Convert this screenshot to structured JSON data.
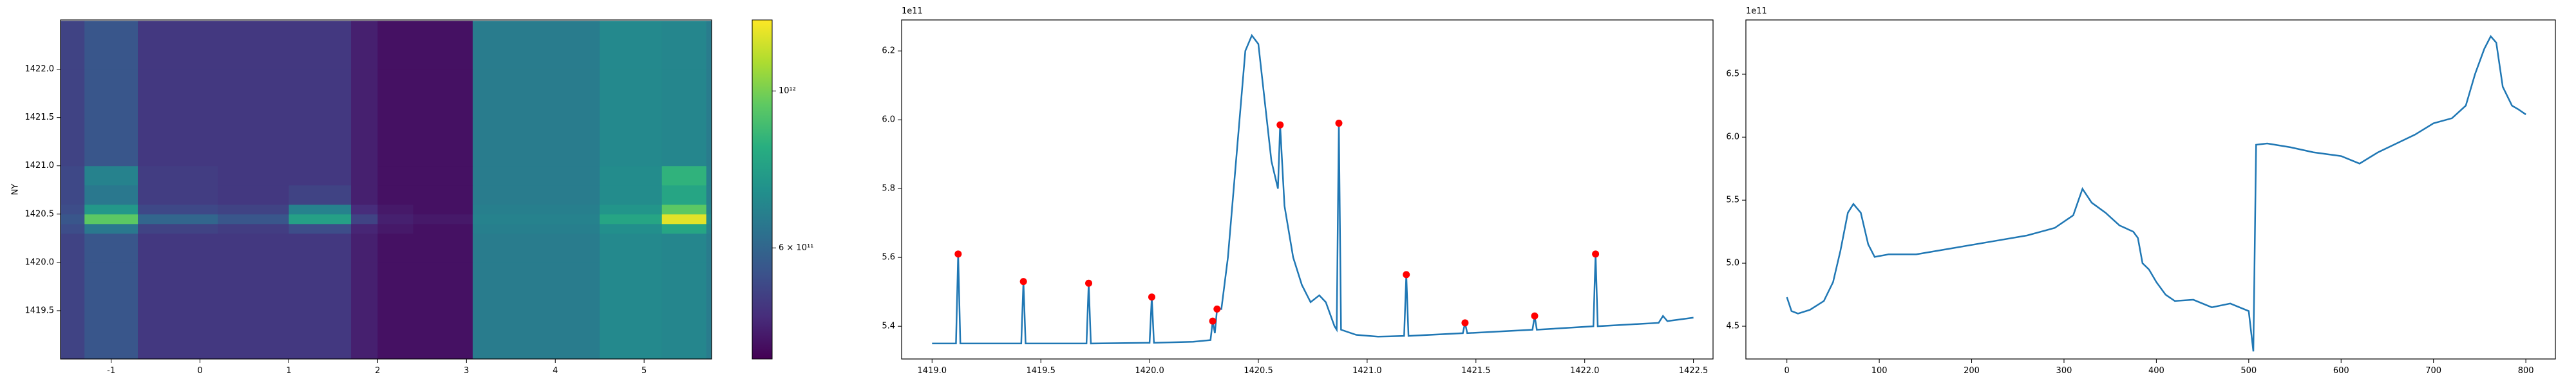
{
  "chart_data": [
    {
      "type": "heatmap",
      "ylabel": "NY",
      "colormap": "viridis",
      "xlim": [
        -1.57,
        5.76
      ],
      "ylim": [
        1419.0,
        1422.51
      ],
      "xticks": [
        -1,
        0,
        1,
        2,
        3,
        4,
        5
      ],
      "yticks": [
        1419.5,
        {
          "value": 1420,
          "label": "1420.0"
        },
        1420.5,
        {
          "value": 1421,
          "label": "1421.0"
        },
        1421.5,
        {
          "value": 1422,
          "label": "1422.0"
        }
      ],
      "x_edges": [
        -1.57,
        -1.3,
        -0.7,
        0.2,
        1.0,
        1.7,
        2.0,
        2.4,
        3.07,
        4.5,
        5.2,
        5.7,
        5.76
      ],
      "y_edges": [
        1419.0,
        1419.5,
        1420.0,
        1420.3,
        1420.4,
        1420.5,
        1420.6,
        1420.8,
        1421.0,
        1421.5,
        1422.0,
        1422.5
      ],
      "z": [
        [
          520000000000.0,
          560000000000.0,
          500000000000.0,
          500000000000.0,
          500000000000.0,
          460000000000.0,
          440000000000.0,
          440000000000.0,
          660000000000.0,
          700000000000.0,
          690000000000.0,
          660000000000.0
        ],
        [
          520000000000.0,
          560000000000.0,
          500000000000.0,
          500000000000.0,
          500000000000.0,
          460000000000.0,
          440000000000.0,
          440000000000.0,
          660000000000.0,
          700000000000.0,
          690000000000.0,
          660000000000.0
        ],
        [
          520000000000.0,
          560000000000.0,
          500000000000.0,
          500000000000.0,
          500000000000.0,
          460000000000.0,
          440000000000.0,
          440000000000.0,
          660000000000.0,
          700000000000.0,
          690000000000.0,
          660000000000.0
        ],
        [
          540000000000.0,
          650000000000.0,
          520000000000.0,
          510000000000.0,
          540000000000.0,
          470000000000.0,
          450000000000.0,
          440000000000.0,
          670000000000.0,
          720000000000.0,
          800000000000.0,
          680000000000.0
        ],
        [
          560000000000.0,
          950000000000.0,
          600000000000.0,
          560000000000.0,
          780000000000.0,
          520000000000.0,
          460000000000.0,
          450000000000.0,
          680000000000.0,
          800000000000.0,
          1200000000000.0,
          700000000000.0
        ],
        [
          540000000000.0,
          750000000000.0,
          530000000000.0,
          520000000000.0,
          680000000000.0,
          480000000000.0,
          450000000000.0,
          440000000000.0,
          670000000000.0,
          740000000000.0,
          950000000000.0,
          680000000000.0
        ],
        [
          530000000000.0,
          650000000000.0,
          510000000000.0,
          500000000000.0,
          520000000000.0,
          460000000000.0,
          440000000000.0,
          440000000000.0,
          660000000000.0,
          710000000000.0,
          800000000000.0,
          670000000000.0
        ],
        [
          530000000000.0,
          680000000000.0,
          510000000000.0,
          500000000000.0,
          500000000000.0,
          460000000000.0,
          440000000000.0,
          440000000000.0,
          660000000000.0,
          710000000000.0,
          850000000000.0,
          670000000000.0
        ],
        [
          520000000000.0,
          560000000000.0,
          500000000000.0,
          500000000000.0,
          500000000000.0,
          460000000000.0,
          440000000000.0,
          440000000000.0,
          660000000000.0,
          700000000000.0,
          690000000000.0,
          660000000000.0
        ],
        [
          520000000000.0,
          560000000000.0,
          500000000000.0,
          500000000000.0,
          500000000000.0,
          460000000000.0,
          440000000000.0,
          440000000000.0,
          660000000000.0,
          700000000000.0,
          690000000000.0,
          660000000000.0
        ],
        [
          520000000000.0,
          560000000000.0,
          500000000000.0,
          500000000000.0,
          500000000000.0,
          460000000000.0,
          440000000000.0,
          440000000000.0,
          660000000000.0,
          700000000000.0,
          690000000000.0,
          660000000000.0
        ]
      ],
      "colorbar": {
        "clim": [
          418000000000.0,
          1260000000000.0
        ],
        "log": true,
        "ticks": [
          {
            "value": 1000000000000.0,
            "label": "10¹²"
          },
          {
            "value": 600000000000.0,
            "label": "6 × 10¹¹"
          }
        ]
      }
    },
    {
      "type": "line",
      "offset_label": "1e11",
      "xlim": [
        1418.86,
        1422.59
      ],
      "ylim": [
        5.305,
        6.29
      ],
      "xticks": [
        {
          "value": 1419,
          "label": "1419.0"
        },
        1419.5,
        {
          "value": 1420,
          "label": "1420.0"
        },
        1420.5,
        {
          "value": 1421,
          "label": "1421.0"
        },
        1421.5,
        {
          "value": 1422,
          "label": "1422.0"
        },
        1422.5
      ],
      "yticks": [
        5.4,
        5.6,
        5.8,
        {
          "value": 6,
          "label": "6.0"
        },
        6.2
      ],
      "x": [
        1419.0,
        1419.11,
        1419.12,
        1419.13,
        1419.41,
        1419.42,
        1419.43,
        1419.71,
        1419.72,
        1419.73,
        1420.0,
        1420.01,
        1420.02,
        1420.2,
        1420.28,
        1420.29,
        1420.3,
        1420.31,
        1420.33,
        1420.36,
        1420.4,
        1420.44,
        1420.47,
        1420.5,
        1420.53,
        1420.56,
        1420.59,
        1420.6,
        1420.62,
        1420.66,
        1420.7,
        1420.74,
        1420.78,
        1420.81,
        1420.85,
        1420.86,
        1420.87,
        1420.88,
        1420.95,
        1421.05,
        1421.17,
        1421.18,
        1421.19,
        1421.44,
        1421.45,
        1421.46,
        1421.76,
        1421.77,
        1421.78,
        1422.04,
        1422.05,
        1422.06,
        1422.34,
        1422.36,
        1422.38,
        1422.5
      ],
      "series": [
        {
          "color": "#1f77b4",
          "values": [
            5.35,
            5.35,
            5.61,
            5.35,
            5.35,
            5.53,
            5.35,
            5.35,
            5.525,
            5.35,
            5.352,
            5.485,
            5.352,
            5.355,
            5.36,
            5.415,
            5.38,
            5.45,
            5.45,
            5.6,
            5.9,
            6.2,
            6.245,
            6.22,
            6.05,
            5.88,
            5.8,
            5.985,
            5.75,
            5.6,
            5.52,
            5.47,
            5.49,
            5.47,
            5.4,
            5.39,
            5.99,
            5.39,
            5.375,
            5.37,
            5.372,
            5.55,
            5.372,
            5.38,
            5.41,
            5.38,
            5.39,
            5.43,
            5.39,
            5.4,
            5.61,
            5.4,
            5.41,
            5.43,
            5.415,
            5.425
          ]
        }
      ],
      "points": {
        "color": "#ff0000",
        "x": [
          1419.12,
          1419.42,
          1419.72,
          1420.01,
          1420.29,
          1420.31,
          1420.6,
          1420.87,
          1421.18,
          1421.45,
          1421.77,
          1422.05
        ],
        "values": [
          5.61,
          5.53,
          5.525,
          5.485,
          5.415,
          5.45,
          5.985,
          5.99,
          5.55,
          5.41,
          5.43,
          5.61
        ]
      }
    },
    {
      "type": "line",
      "offset_label": "1e11",
      "xlim": [
        -44.4,
        832
      ],
      "ylim": [
        4.24,
        6.93
      ],
      "xticks": [
        0,
        100,
        200,
        300,
        400,
        500,
        600,
        700,
        800
      ],
      "yticks": [
        4.5,
        {
          "value": 5,
          "label": "5.0"
        },
        5.5,
        {
          "value": 6,
          "label": "6.0"
        },
        6.5
      ],
      "x": [
        0,
        5,
        12,
        25,
        40,
        50,
        58,
        66,
        72,
        80,
        88,
        95,
        110,
        140,
        180,
        220,
        260,
        290,
        310,
        320,
        330,
        345,
        360,
        375,
        380,
        385,
        392,
        400,
        410,
        420,
        440,
        460,
        480,
        500,
        505,
        508,
        520,
        545,
        570,
        600,
        620,
        640,
        660,
        680,
        700,
        720,
        735,
        745,
        755,
        762,
        768,
        775,
        785,
        792,
        800
      ],
      "series": [
        {
          "color": "#1f77b4",
          "values": [
            4.73,
            4.62,
            4.6,
            4.63,
            4.7,
            4.85,
            5.1,
            5.4,
            5.47,
            5.4,
            5.15,
            5.05,
            5.07,
            5.07,
            5.12,
            5.17,
            5.22,
            5.28,
            5.38,
            5.59,
            5.48,
            5.4,
            5.3,
            5.25,
            5.2,
            5.0,
            4.95,
            4.85,
            4.75,
            4.7,
            4.71,
            4.65,
            4.68,
            4.62,
            4.3,
            5.94,
            5.95,
            5.92,
            5.88,
            5.85,
            5.79,
            5.88,
            5.95,
            6.02,
            6.11,
            6.15,
            6.25,
            6.5,
            6.7,
            6.8,
            6.75,
            6.4,
            6.25,
            6.22,
            6.18
          ]
        }
      ]
    }
  ]
}
